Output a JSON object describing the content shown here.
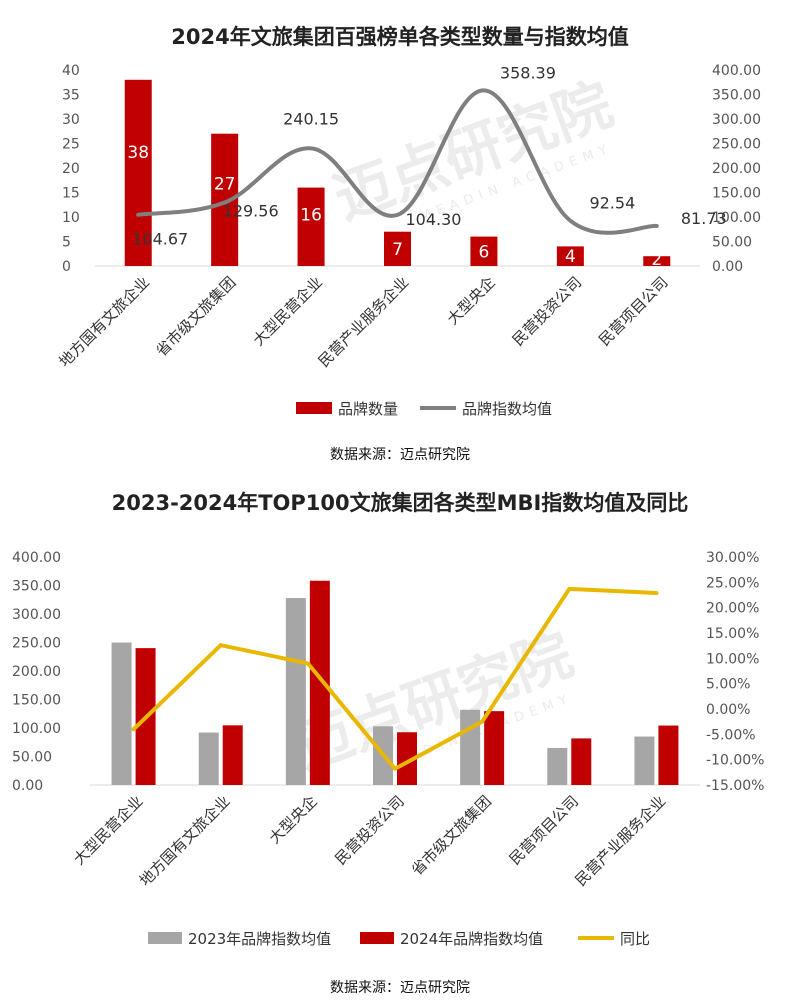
{
  "watermark": {
    "text": "迈点研究院",
    "sub": "MEADIN ACADEMY"
  },
  "chart_data": [
    {
      "type": "bar",
      "title": "2024年文旅集团百强榜单各类型数量与指数均值",
      "source": "数据来源：迈点研究院",
      "categories": [
        "地方国有文旅企业",
        "省市级文旅集团",
        "大型民营企业",
        "民营产业服务企业",
        "大型央企",
        "民营投资公司",
        "民营项目公司"
      ],
      "series": [
        {
          "name": "品牌数量",
          "kind": "bar",
          "axis": "left",
          "color": "#C00000",
          "values": [
            38,
            27,
            16,
            7,
            6,
            4,
            2
          ]
        },
        {
          "name": "品牌指数均值",
          "kind": "line",
          "axis": "right",
          "color": "#7F7F7F",
          "values": [
            104.67,
            129.56,
            240.15,
            104.3,
            358.39,
            92.54,
            81.73
          ]
        }
      ],
      "left_axis": {
        "ylim": [
          0,
          40
        ],
        "ticks": [
          "0",
          "5",
          "10",
          "15",
          "20",
          "25",
          "30",
          "35",
          "40"
        ]
      },
      "right_axis": {
        "ylim": [
          0,
          400
        ],
        "ticks": [
          "0.00",
          "50.00",
          "100.00",
          "150.00",
          "200.00",
          "250.00",
          "300.00",
          "350.00",
          "400.00"
        ]
      },
      "bar_labels": [
        "38",
        "27",
        "16",
        "7",
        "6",
        "4",
        "2"
      ],
      "line_labels": [
        "104.67",
        "129.56",
        "240.15",
        "104.30",
        "358.39",
        "92.54",
        "81.73"
      ],
      "grid": false,
      "legend_position": "bottom"
    },
    {
      "type": "bar",
      "title": "2023-2024年TOP100文旅集团各类型MBI指数均值及同比",
      "source": "数据来源：迈点研究院",
      "categories": [
        "大型民营企业",
        "地方国有文旅企业",
        "大型央企",
        "民营投资公司",
        "省市级文旅集团",
        "民营项目公司",
        "民营产业服务企业"
      ],
      "series": [
        {
          "name": "2023年品牌指数均值",
          "kind": "bar",
          "axis": "left",
          "color": "#A6A6A6",
          "values": [
            250,
            92,
            328,
            103,
            132,
            65,
            85
          ]
        },
        {
          "name": "2024年品牌指数均值",
          "kind": "bar",
          "axis": "left",
          "color": "#C00000",
          "values": [
            240.15,
            104.67,
            358.39,
            92.54,
            129.56,
            81.73,
            104.3
          ]
        },
        {
          "name": "同比",
          "kind": "line",
          "axis": "right",
          "color": "#E8B800",
          "values": [
            -4.0,
            12.6,
            9.0,
            -11.8,
            -2.5,
            23.7,
            22.9
          ]
        }
      ],
      "left_axis": {
        "ylim": [
          0,
          400
        ],
        "ticks": [
          "0.00",
          "50.00",
          "100.00",
          "150.00",
          "200.00",
          "250.00",
          "300.00",
          "350.00",
          "400.00"
        ]
      },
      "right_axis": {
        "ylim": [
          -15,
          30
        ],
        "ticks": [
          "-15.00%",
          "-10.00%",
          "-5.00%",
          "0.00%",
          "5.00%",
          "10.00%",
          "15.00%",
          "20.00%",
          "25.00%",
          "30.00%"
        ]
      },
      "grid": false,
      "legend_position": "bottom"
    }
  ]
}
